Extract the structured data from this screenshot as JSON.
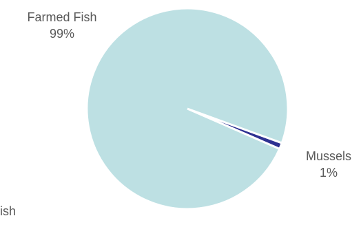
{
  "chart_data": {
    "type": "pie",
    "title": "",
    "start_angle_deg": 20,
    "direction": "clockwise",
    "slices": [
      {
        "name": "Mussels",
        "percent_label": "1%",
        "value": 1,
        "color": "#2e3192"
      },
      {
        "name": "Farmed Fish",
        "percent_label": "99%",
        "value": 99,
        "color": "#bde0e3"
      }
    ],
    "partial_labels": [
      {
        "text": "ish",
        "color": "#595959"
      }
    ],
    "separator_color": "#ffffff"
  }
}
